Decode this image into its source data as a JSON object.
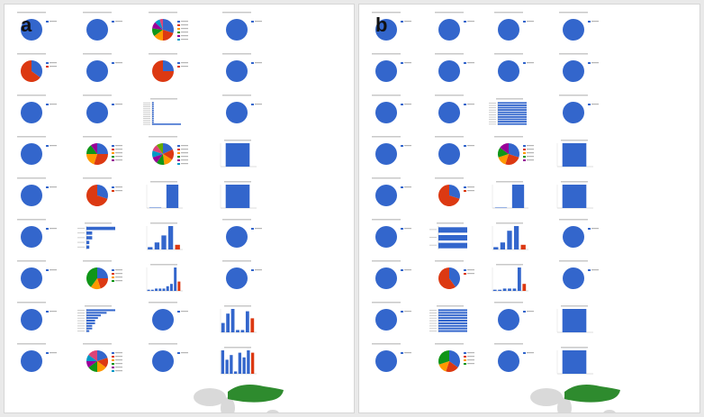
{
  "panels": [
    {
      "label": "a"
    },
    {
      "label": "b"
    }
  ],
  "colors": {
    "blue": "#3366cc",
    "red": "#dc3912",
    "orange": "#ff9900",
    "green": "#109618",
    "purple": "#990099",
    "teal": "#0099c6",
    "map_land": "#d9d9d9",
    "map_highlight": "#2e8b2e"
  },
  "chart_data": [
    {
      "panel": "a",
      "type": "grid_of_small_charts",
      "rows": [
        [
          {
            "type": "pie",
            "values": [
              1
            ]
          },
          {
            "type": "pie",
            "values": [
              1
            ]
          },
          {
            "type": "pie",
            "values": [
              30,
              20,
              15,
              12,
              10,
              8,
              5
            ]
          },
          {
            "type": "pie",
            "values": [
              1
            ]
          }
        ],
        [
          {
            "type": "pie",
            "values": [
              35,
              65
            ]
          },
          {
            "type": "pie",
            "values": [
              1
            ]
          },
          {
            "type": "pie",
            "values": [
              25,
              75
            ]
          },
          {
            "type": "pie",
            "values": [
              1
            ]
          }
        ],
        [
          {
            "type": "pie",
            "values": [
              1
            ]
          },
          {
            "type": "pie",
            "values": [
              1
            ]
          },
          {
            "type": "bar",
            "orientation": "horizontal",
            "values": [
              1,
              1,
              1,
              1,
              1,
              1,
              1,
              1,
              1,
              1,
              1,
              18
            ]
          },
          {
            "type": "pie",
            "values": [
              1
            ]
          }
        ],
        [
          {
            "type": "pie",
            "values": [
              1
            ]
          },
          {
            "type": "pie",
            "values": [
              25,
              30,
              20,
              15,
              10
            ]
          },
          {
            "type": "pie",
            "values": [
              18,
              16,
              14,
              12,
              10,
              10,
              10,
              10
            ]
          },
          {
            "type": "bar",
            "orientation": "vertical",
            "values": [
              1
            ]
          }
        ],
        [
          {
            "type": "pie",
            "values": [
              1
            ]
          },
          {
            "type": "pie",
            "values": [
              30,
              70
            ]
          },
          {
            "type": "bar",
            "orientation": "vertical",
            "values": [
              0.02,
              1
            ]
          },
          {
            "type": "bar",
            "orientation": "vertical",
            "values": [
              1
            ]
          }
        ],
        [
          {
            "type": "pie",
            "values": [
              1
            ]
          },
          {
            "type": "bar",
            "orientation": "horizontal",
            "values": [
              10,
              2,
              2,
              1,
              1
            ]
          },
          {
            "type": "bar",
            "orientation": "vertical",
            "values": [
              1,
              3,
              6,
              10,
              2
            ]
          },
          {
            "type": "pie",
            "values": [
              1
            ]
          }
        ],
        [
          {
            "type": "pie",
            "values": [
              1
            ]
          },
          {
            "type": "pie",
            "values": [
              25,
              20,
              15,
              40
            ]
          },
          {
            "type": "bar",
            "orientation": "vertical",
            "values": [
              0.5,
              0.5,
              1,
              1,
              1,
              2,
              3,
              10,
              4
            ]
          },
          {
            "type": "pie",
            "values": [
              1
            ]
          }
        ],
        [
          {
            "type": "pie",
            "values": [
              1
            ]
          },
          {
            "type": "bar",
            "orientation": "horizontal",
            "values": [
              10,
              7,
              5,
              4,
              3,
              3,
              2,
              2,
              1
            ]
          },
          {
            "type": "pie",
            "values": [
              1
            ]
          },
          {
            "type": "bar",
            "orientation": "vertical",
            "values": [
              4,
              8,
              10,
              1,
              1,
              9,
              6
            ]
          }
        ],
        [
          {
            "type": "pie",
            "values": [
              1
            ]
          },
          {
            "type": "pie",
            "values": [
              20,
              15,
              15,
              15,
              10,
              10,
              15
            ]
          },
          {
            "type": "pie",
            "values": [
              1
            ]
          },
          {
            "type": "bar",
            "orientation": "vertical",
            "values": [
              10,
              6,
              8,
              1,
              9,
              7,
              10,
              9
            ]
          }
        ]
      ],
      "map": {
        "highlight": "eurasia"
      }
    },
    {
      "panel": "b",
      "type": "grid_of_small_charts",
      "rows": [
        [
          {
            "type": "pie",
            "values": [
              1
            ]
          },
          {
            "type": "pie",
            "values": [
              1
            ]
          },
          {
            "type": "pie",
            "values": [
              1
            ]
          },
          {
            "type": "pie",
            "values": [
              1
            ]
          }
        ],
        [
          {
            "type": "pie",
            "values": [
              1
            ]
          },
          {
            "type": "pie",
            "values": [
              1
            ]
          },
          {
            "type": "pie",
            "values": [
              1
            ]
          },
          {
            "type": "pie",
            "values": [
              1
            ]
          }
        ],
        [
          {
            "type": "pie",
            "values": [
              1
            ]
          },
          {
            "type": "pie",
            "values": [
              1
            ]
          },
          {
            "type": "bar",
            "orientation": "horizontal",
            "values": [
              5,
              5,
              5,
              5,
              5,
              5,
              5,
              5,
              5,
              5
            ]
          },
          {
            "type": "pie",
            "values": [
              1
            ]
          }
        ],
        [
          {
            "type": "pie",
            "values": [
              1
            ]
          },
          {
            "type": "pie",
            "values": [
              1
            ]
          },
          {
            "type": "pie",
            "values": [
              30,
              25,
              15,
              15,
              15
            ]
          },
          {
            "type": "bar",
            "orientation": "vertical",
            "values": [
              1
            ]
          }
        ],
        [
          {
            "type": "pie",
            "values": [
              1
            ]
          },
          {
            "type": "pie",
            "values": [
              30,
              70
            ]
          },
          {
            "type": "bar",
            "orientation": "vertical",
            "values": [
              0.02,
              1
            ]
          },
          {
            "type": "bar",
            "orientation": "vertical",
            "values": [
              1
            ]
          }
        ],
        [
          {
            "type": "pie",
            "values": [
              1
            ]
          },
          {
            "type": "bar",
            "orientation": "horizontal",
            "values": [
              5,
              5,
              5
            ]
          },
          {
            "type": "bar",
            "orientation": "vertical",
            "values": [
              1,
              3,
              8,
              10,
              2
            ]
          },
          {
            "type": "pie",
            "values": [
              1
            ]
          }
        ],
        [
          {
            "type": "pie",
            "values": [
              1
            ]
          },
          {
            "type": "pie",
            "values": [
              40,
              60
            ]
          },
          {
            "type": "bar",
            "orientation": "vertical",
            "values": [
              0.5,
              0.5,
              1,
              1,
              1,
              10,
              3
            ]
          },
          {
            "type": "pie",
            "values": [
              1
            ]
          }
        ],
        [
          {
            "type": "pie",
            "values": [
              1
            ]
          },
          {
            "type": "bar",
            "orientation": "horizontal",
            "values": [
              5,
              5,
              5,
              5,
              5,
              5,
              5,
              5,
              5
            ]
          },
          {
            "type": "pie",
            "values": [
              1
            ]
          },
          {
            "type": "bar",
            "orientation": "vertical",
            "values": [
              1
            ]
          }
        ],
        [
          {
            "type": "pie",
            "values": [
              1
            ]
          },
          {
            "type": "pie",
            "values": [
              35,
              20,
              15,
              30
            ]
          },
          {
            "type": "pie",
            "values": [
              1
            ]
          },
          {
            "type": "bar",
            "orientation": "vertical",
            "values": [
              1
            ]
          }
        ]
      ],
      "map": {
        "highlight": "eurasia"
      }
    }
  ]
}
